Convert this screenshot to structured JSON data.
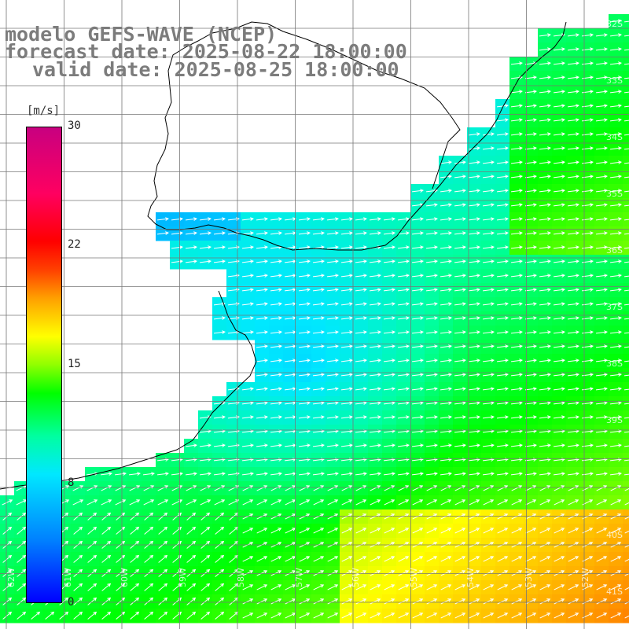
{
  "header": {
    "model_line": "modelo GEFS-WAVE (NCEP)",
    "forecast_line": "forecast date: 2025-08-22 18:00:00",
    "valid_line": "valid date: 2025-08-25 18:00:00"
  },
  "colorbar": {
    "unit": "[m/s]",
    "ticks": [
      {
        "label": "30",
        "value": 30
      },
      {
        "label": "22",
        "value": 22
      },
      {
        "label": "15",
        "value": 15
      },
      {
        "label": "8",
        "value": 8
      },
      {
        "label": "0",
        "value": 0
      }
    ],
    "range": [
      0,
      30
    ],
    "colors": [
      "#0000ff",
      "#0080ff",
      "#00e8ff",
      "#00ff00",
      "#ffff00",
      "#ff0000",
      "#c80080"
    ]
  },
  "axes": {
    "lat_labels": [
      "32S",
      "33S",
      "34S",
      "35S",
      "36S",
      "37S",
      "38S",
      "39S",
      "40S",
      "41S"
    ],
    "lon_labels": [
      "62W",
      "61W",
      "60W",
      "59W",
      "58W",
      "57W",
      "56W",
      "55W",
      "54W",
      "53W",
      "52W",
      "51W"
    ]
  },
  "colors": {
    "land": "#ffffff",
    "coast": "#000000",
    "grid": "#777777",
    "arrow": "#ffffff"
  }
}
